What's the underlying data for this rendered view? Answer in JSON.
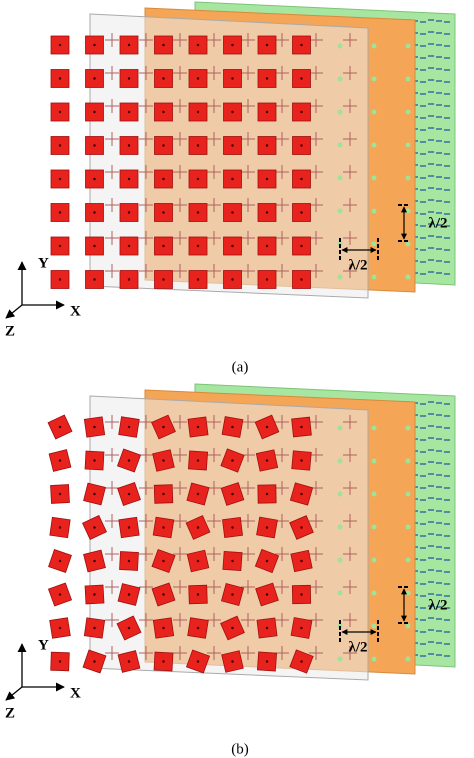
{
  "figures": [
    {
      "axes": {
        "y": "Y",
        "x": "X",
        "z": "Z"
      },
      "dimensions": [
        "λ/2",
        "λ/2"
      ],
      "caption": "(a)"
    },
    {
      "axes": {
        "y": "Y",
        "x": "X",
        "z": "Z"
      },
      "dimensions": [
        "λ/2",
        "λ/2"
      ],
      "caption": "(b)"
    }
  ]
}
